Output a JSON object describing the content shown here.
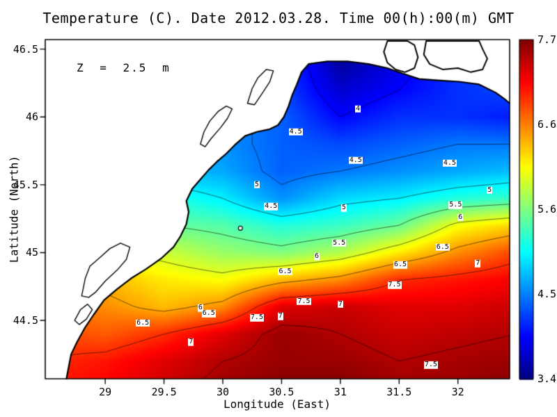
{
  "title": "Temperature (C). Date 2012.03.28. Time 00(h):00(m) GMT",
  "annotation": "Z = 2.5 m",
  "axes": {
    "x_label": "Longitude (East)",
    "y_label": "Latitude (North)",
    "x_ticks": [
      "29",
      "29.5",
      "30",
      "30.5",
      "31",
      "31.5",
      "32"
    ],
    "y_ticks": [
      "44.5",
      "45",
      "45.5",
      "46",
      "46.5"
    ],
    "lon_range": [
      28.49,
      32.44
    ],
    "lat_range": [
      44.07,
      46.57
    ]
  },
  "colorbar": {
    "min": 3.47,
    "max": 7.71,
    "labels": [
      "7.71",
      "6.69",
      "5.61",
      "4.54",
      "3.47"
    ]
  },
  "chart_data": {
    "type": "heatmap",
    "title": "Temperature (C). Date 2012.03.28. Time 00(h):00(m) GMT",
    "variable": "Temperature (C)",
    "depth_label": "Z = 2.5 m",
    "value_min": 3.47,
    "value_max": 7.71,
    "lons": [
      28.5,
      29.0,
      29.5,
      30.0,
      30.5,
      31.0,
      31.5,
      32.0,
      32.5
    ],
    "lats": [
      46.6,
      46.4,
      46.2,
      46.0,
      45.8,
      45.6,
      45.4,
      45.2,
      45.0,
      44.8,
      44.6,
      44.4,
      44.2,
      44.0
    ],
    "values": [
      [
        5.2,
        5.1,
        4.9,
        4.7,
        4.4,
        3.7,
        4.0,
        4.2,
        4.3
      ],
      [
        5.2,
        5.0,
        4.9,
        4.6,
        4.3,
        3.6,
        3.9,
        4.2,
        4.3
      ],
      [
        5.1,
        5.0,
        4.8,
        4.6,
        4.3,
        3.8,
        4.0,
        4.2,
        4.3
      ],
      [
        5.1,
        4.9,
        4.8,
        4.6,
        4.4,
        4.0,
        4.2,
        4.2,
        4.1
      ],
      [
        5.0,
        4.9,
        4.8,
        4.6,
        4.4,
        4.3,
        4.4,
        4.5,
        4.5
      ],
      [
        5.0,
        4.9,
        4.8,
        4.7,
        4.4,
        4.5,
        4.6,
        4.7,
        4.8
      ],
      [
        5.4,
        5.3,
        5.2,
        5.0,
        4.6,
        4.9,
        5.0,
        5.2,
        5.3
      ],
      [
        5.8,
        5.7,
        5.5,
        5.4,
        5.2,
        5.3,
        5.5,
        6.1,
        6.3
      ],
      [
        6.2,
        6.0,
        5.9,
        5.7,
        5.6,
        5.8,
        6.2,
        6.6,
        6.9
      ],
      [
        6.5,
        6.4,
        6.2,
        6.1,
        6.4,
        6.6,
        7.0,
        7.1,
        7.2
      ],
      [
        6.7,
        6.6,
        6.4,
        6.6,
        7.3,
        7.4,
        7.3,
        7.3,
        7.4
      ],
      [
        6.9,
        6.8,
        7.0,
        7.3,
        7.6,
        7.5,
        7.4,
        7.45,
        7.5
      ],
      [
        7.0,
        7.1,
        7.3,
        7.5,
        7.6,
        7.6,
        7.5,
        7.55,
        7.6
      ],
      [
        7.1,
        7.2,
        7.4,
        7.6,
        7.7,
        7.7,
        7.6,
        7.6,
        7.7
      ]
    ],
    "contour_levels": [
      4,
      4.5,
      5,
      5.5,
      6,
      6.5,
      7,
      7.5
    ],
    "contour_labels": [
      {
        "t": "4",
        "lon": 31.15,
        "lat": 46.06
      },
      {
        "t": "4.5",
        "lon": 30.62,
        "lat": 45.89
      },
      {
        "t": "4.5",
        "lon": 31.13,
        "lat": 45.68
      },
      {
        "t": "4.5",
        "lon": 31.93,
        "lat": 45.66
      },
      {
        "t": "4.5",
        "lon": 30.41,
        "lat": 45.34
      },
      {
        "t": "5",
        "lon": 30.29,
        "lat": 45.5
      },
      {
        "t": "5",
        "lon": 31.03,
        "lat": 45.33
      },
      {
        "t": "5",
        "lon": 32.27,
        "lat": 45.46
      },
      {
        "t": "5.5",
        "lon": 31.98,
        "lat": 45.35
      },
      {
        "t": "6",
        "lon": 32.02,
        "lat": 45.26
      },
      {
        "t": "5.5",
        "lon": 30.99,
        "lat": 45.07
      },
      {
        "t": "6",
        "lon": 30.8,
        "lat": 44.97
      },
      {
        "t": "6.5",
        "lon": 31.87,
        "lat": 45.04
      },
      {
        "t": "7",
        "lon": 32.17,
        "lat": 44.92
      },
      {
        "t": "6.5",
        "lon": 30.53,
        "lat": 44.86
      },
      {
        "t": "6.5",
        "lon": 31.51,
        "lat": 44.91
      },
      {
        "t": "7.5",
        "lon": 31.46,
        "lat": 44.76
      },
      {
        "t": "7",
        "lon": 31.0,
        "lat": 44.62
      },
      {
        "t": "7.5",
        "lon": 30.69,
        "lat": 44.64
      },
      {
        "t": "7",
        "lon": 30.49,
        "lat": 44.53
      },
      {
        "t": "6",
        "lon": 29.81,
        "lat": 44.59
      },
      {
        "t": "6.5",
        "lon": 29.88,
        "lat": 44.55
      },
      {
        "t": "7.5",
        "lon": 30.29,
        "lat": 44.52
      },
      {
        "t": "6.5",
        "lon": 29.32,
        "lat": 44.48
      },
      {
        "t": "7",
        "lon": 29.73,
        "lat": 44.34
      },
      {
        "t": "7.5",
        "lon": 31.77,
        "lat": 44.17
      }
    ],
    "coast": [
      [
        28.67,
        44.07
      ],
      [
        28.71,
        44.25
      ],
      [
        28.76,
        44.34
      ],
      [
        28.83,
        44.45
      ],
      [
        28.9,
        44.54
      ],
      [
        28.99,
        44.65
      ],
      [
        29.1,
        44.73
      ],
      [
        29.22,
        44.81
      ],
      [
        29.35,
        44.88
      ],
      [
        29.48,
        44.96
      ],
      [
        29.58,
        45.04
      ],
      [
        29.64,
        45.12
      ],
      [
        29.69,
        45.21
      ],
      [
        29.71,
        45.3
      ],
      [
        29.69,
        45.38
      ],
      [
        29.74,
        45.47
      ],
      [
        29.81,
        45.54
      ],
      [
        29.88,
        45.61
      ],
      [
        29.95,
        45.67
      ],
      [
        30.03,
        45.73
      ],
      [
        30.11,
        45.8
      ],
      [
        30.19,
        45.86
      ],
      [
        30.29,
        45.89
      ],
      [
        30.4,
        45.91
      ],
      [
        30.47,
        45.94
      ],
      [
        30.52,
        46.0
      ],
      [
        30.56,
        46.08
      ],
      [
        30.59,
        46.16
      ],
      [
        30.63,
        46.24
      ],
      [
        30.67,
        46.33
      ],
      [
        30.73,
        46.39
      ],
      [
        30.89,
        46.41
      ],
      [
        31.06,
        46.41
      ],
      [
        31.24,
        46.39
      ],
      [
        31.4,
        46.36
      ],
      [
        31.53,
        46.32
      ],
      [
        31.67,
        46.28
      ],
      [
        31.83,
        46.27
      ],
      [
        32.01,
        46.26
      ],
      [
        32.18,
        46.24
      ],
      [
        32.32,
        46.18
      ],
      [
        32.4,
        46.13
      ],
      [
        32.44,
        46.1
      ]
    ],
    "lakes": [
      [
        [
          28.8,
          44.68
        ],
        [
          28.83,
          44.81
        ],
        [
          28.87,
          44.9
        ],
        [
          28.95,
          44.96
        ],
        [
          29.04,
          45.03
        ],
        [
          29.13,
          45.07
        ],
        [
          29.21,
          45.04
        ],
        [
          29.18,
          44.95
        ],
        [
          29.1,
          44.87
        ],
        [
          29.0,
          44.79
        ],
        [
          28.92,
          44.71
        ],
        [
          28.86,
          44.67
        ]
      ],
      [
        [
          28.74,
          44.5
        ],
        [
          28.79,
          44.58
        ],
        [
          28.85,
          44.62
        ],
        [
          28.89,
          44.58
        ],
        [
          28.84,
          44.51
        ],
        [
          28.78,
          44.47
        ]
      ],
      [
        [
          29.81,
          45.8
        ],
        [
          29.84,
          45.89
        ],
        [
          29.89,
          45.97
        ],
        [
          29.96,
          46.04
        ],
        [
          30.03,
          46.08
        ],
        [
          30.08,
          46.06
        ],
        [
          30.04,
          45.99
        ],
        [
          29.98,
          45.92
        ],
        [
          29.9,
          45.84
        ],
        [
          29.85,
          45.78
        ]
      ],
      [
        [
          30.21,
          46.1
        ],
        [
          30.25,
          46.21
        ],
        [
          30.3,
          46.29
        ],
        [
          30.37,
          46.35
        ],
        [
          30.43,
          46.34
        ],
        [
          30.4,
          46.26
        ],
        [
          30.34,
          46.18
        ],
        [
          30.27,
          46.09
        ]
      ]
    ],
    "islands": [
      [
        [
          31.4,
          46.56
        ],
        [
          31.37,
          46.48
        ],
        [
          31.4,
          46.4
        ],
        [
          31.47,
          46.35
        ],
        [
          31.55,
          46.33
        ],
        [
          31.63,
          46.36
        ],
        [
          31.66,
          46.44
        ],
        [
          31.63,
          46.53
        ],
        [
          31.57,
          46.56
        ]
      ],
      [
        [
          31.73,
          46.56
        ],
        [
          31.71,
          46.46
        ],
        [
          31.76,
          46.39
        ],
        [
          31.87,
          46.35
        ],
        [
          32.0,
          46.36
        ],
        [
          32.11,
          46.33
        ],
        [
          32.21,
          46.35
        ],
        [
          32.25,
          46.43
        ],
        [
          32.21,
          46.5
        ],
        [
          32.18,
          46.56
        ]
      ]
    ],
    "small_island": [
      30.15,
      45.18
    ]
  }
}
